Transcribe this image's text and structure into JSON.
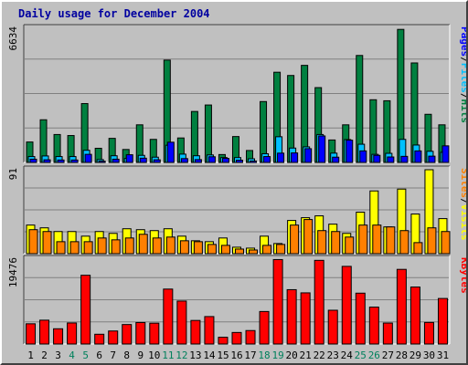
{
  "title": "Daily usage for December 2004",
  "colors": {
    "background": "#c0c0c0",
    "title": "#0000a0",
    "hits": "#008040",
    "files": "#00c0ff",
    "pages": "#0000ff",
    "visits": "#ffff00",
    "sites": "#ff8000",
    "kbytes": "#ff0000",
    "weekend_day": "#00805c",
    "weekday_day": "#000000",
    "bar_border": "#000000",
    "grid": "#808080"
  },
  "chart_data": {
    "type": "bar",
    "title": "Daily usage for December 2004",
    "categories": [
      "1",
      "2",
      "3",
      "4",
      "5",
      "6",
      "7",
      "8",
      "9",
      "10",
      "11",
      "12",
      "13",
      "14",
      "15",
      "16",
      "17",
      "18",
      "19",
      "20",
      "21",
      "22",
      "23",
      "24",
      "25",
      "26",
      "27",
      "28",
      "29",
      "30",
      "31"
    ],
    "weekend_days": [
      "4",
      "5",
      "11",
      "12",
      "18",
      "19",
      "25",
      "26"
    ],
    "panels": [
      {
        "axis_max_label": "6634",
        "ylim": [
          0,
          6634
        ],
        "grid": true,
        "legend": [
          "Pages",
          "/",
          "Files",
          "/",
          "Hits"
        ],
        "series": [
          {
            "name": "Hits",
            "color": "#008040",
            "values": [
              1010,
              2110,
              1380,
              1330,
              2910,
              700,
              1190,
              640,
              1860,
              1140,
              5060,
              1210,
              2520,
              2840,
              390,
              1280,
              590,
              3010,
              4460,
              4300,
              4800,
              3700,
              1110,
              1860,
              5290,
              3100,
              3050,
              6580,
              4920,
              2380,
              1860
            ]
          },
          {
            "name": "Files",
            "color": "#00c0ff",
            "values": [
              290,
              320,
              290,
              290,
              600,
              140,
              330,
              200,
              350,
              260,
              850,
              410,
              330,
              370,
              240,
              240,
              180,
              430,
              1270,
              710,
              770,
              1380,
              460,
              1130,
              900,
              400,
              450,
              1140,
              860,
              550,
              500
            ]
          },
          {
            "name": "Pages",
            "color": "#0000ff",
            "values": [
              160,
              130,
              120,
              120,
              400,
              60,
              160,
              380,
              210,
              130,
              1000,
              190,
              140,
              280,
              200,
              110,
              70,
              290,
              460,
              470,
              680,
              1310,
              260,
              1100,
              570,
              350,
              270,
              300,
              570,
              310,
              820
            ]
          }
        ]
      },
      {
        "axis_max_label": "91",
        "ylim": [
          0,
          91
        ],
        "grid": true,
        "legend": [
          "Sites",
          "/",
          "Visits"
        ],
        "series": [
          {
            "name": "Visits",
            "color": "#ffff00",
            "values": [
              31,
              28,
              24,
              24,
              19,
              24,
              22,
              27,
              26,
              25,
              27,
              19,
              14,
              13,
              17,
              7,
              6,
              19,
              11,
              36,
              39,
              41,
              32,
              22,
              45,
              68,
              29,
              70,
              43,
              91,
              38
            ]
          },
          {
            "name": "Sites",
            "color": "#ff8000",
            "values": [
              26,
              24,
              13,
              13,
              13,
              17,
              15,
              17,
              21,
              17,
              18,
              14,
              13,
              10,
              9,
              5,
              4,
              9,
              10,
              31,
              37,
              25,
              24,
              18,
              31,
              31,
              29,
              25,
              12,
              28,
              24
            ]
          }
        ]
      },
      {
        "axis_max_label": "19476",
        "ylim": [
          0,
          19476
        ],
        "grid": true,
        "legend": [
          "KBytes"
        ],
        "series": [
          {
            "name": "KBytes",
            "color": "#ff0000",
            "values": [
              4640,
              5470,
              3500,
              4830,
              15780,
              2240,
              2990,
              4470,
              4930,
              4780,
              12610,
              9860,
              5410,
              6300,
              1550,
              2650,
              3090,
              7460,
              19380,
              12470,
              11740,
              19200,
              7750,
              17820,
              11670,
              8470,
              4810,
              17130,
              13080,
              4950,
              10450
            ]
          }
        ]
      }
    ]
  }
}
